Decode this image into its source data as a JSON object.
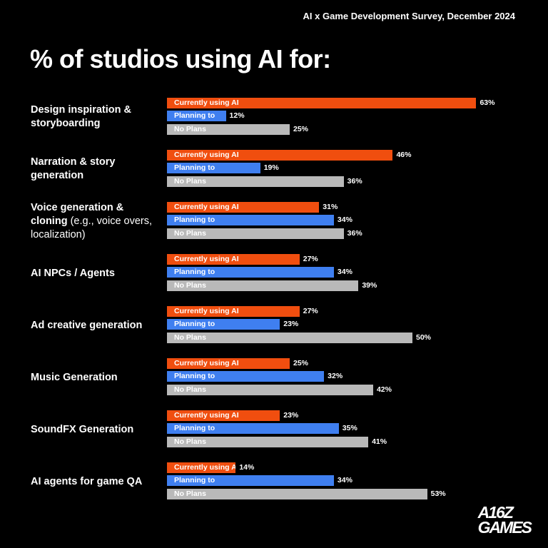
{
  "chart_data": {
    "type": "bar",
    "header": "AI x Game Development Survey, December 2024",
    "title": "% of studios using AI for:",
    "logo": [
      "A16Z",
      "GAMES"
    ],
    "categories": [
      "Design inspiration & storyboarding",
      "Narration & story generation",
      "Voice generation & cloning",
      "AI NPCs / Agents",
      "Ad creative generation",
      "Music Generation",
      "SoundFX Generation",
      "AI agents for game QA"
    ],
    "category_notes": [
      null,
      null,
      "(e.g., voice overs, localization)",
      null,
      null,
      null,
      null,
      null
    ],
    "series": [
      {
        "name": "Currently using AI",
        "color": "#f04e0f",
        "values": [
          63,
          46,
          31,
          27,
          27,
          25,
          23,
          14
        ],
        "value_labels": [
          "63%",
          "46%",
          "31%",
          "27%",
          "27%",
          "25%",
          "23%",
          "14%"
        ]
      },
      {
        "name": "Planning to",
        "color": "#3f7ff0",
        "values": [
          12,
          19,
          34,
          34,
          23,
          32,
          35,
          34
        ],
        "value_labels": [
          "12%",
          "19%",
          "34%",
          "34%",
          "23%",
          "32%",
          "35%",
          "34%"
        ]
      },
      {
        "name": "No Plans",
        "color": "#b9b9b9",
        "values": [
          25,
          36,
          36,
          39,
          50,
          42,
          41,
          53
        ],
        "value_labels": [
          "25%",
          "36%",
          "36%",
          "39%",
          "50%",
          "42%",
          "41%",
          "53%"
        ]
      }
    ]
  }
}
